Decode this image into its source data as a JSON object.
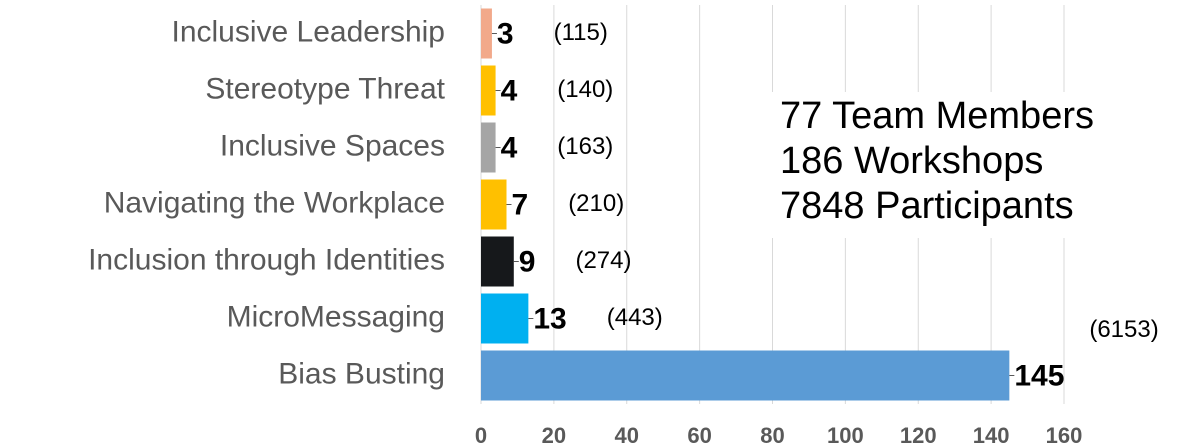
{
  "chart_data": {
    "type": "bar",
    "orientation": "horizontal",
    "categories": [
      "Inclusive Leadership",
      "Stereotype Threat",
      "Inclusive Spaces",
      "Navigating the Workplace",
      "Inclusion through Identities",
      "MicroMessaging",
      "Bias Busting"
    ],
    "values": [
      3,
      4,
      4,
      7,
      9,
      13,
      145
    ],
    "colors": [
      "#f2a98a",
      "#ffc000",
      "#a5a5a5",
      "#ffc000",
      "#16181b",
      "#00b0f0",
      "#5b9bd5"
    ],
    "participant_labels": [
      "(115)",
      "(140)",
      "(163)",
      "(210)",
      "(274)",
      "(443)",
      "(6153)"
    ],
    "annotations": [
      "77 Team Members",
      "186 Workshops",
      "7848 Participants"
    ],
    "xlim": [
      0,
      160
    ],
    "xticks": [
      0,
      20,
      40,
      60,
      80,
      100,
      120,
      140,
      160
    ],
    "grid": true
  }
}
